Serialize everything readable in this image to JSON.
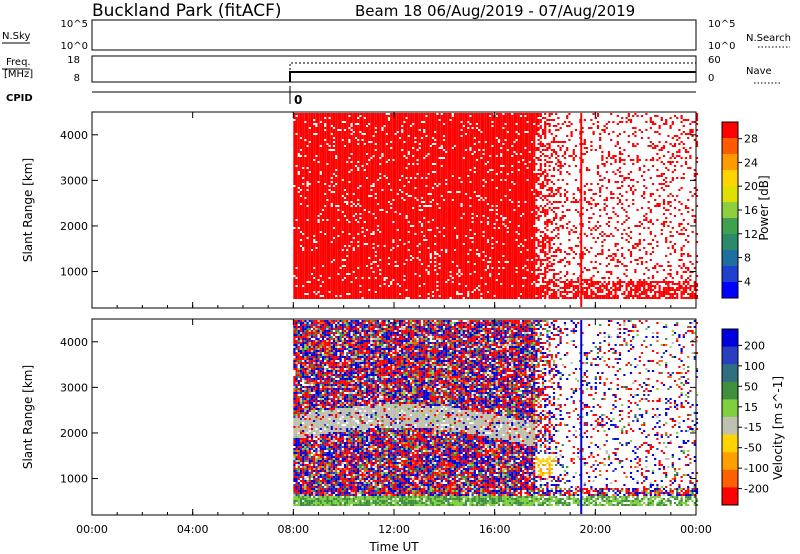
{
  "header": {
    "station": "Buckland Park (fitACF)",
    "beam_date": "Beam 18 06/Aug/2019 - 07/Aug/2019"
  },
  "panels": {
    "nsky": {
      "left_label": "N.Sky",
      "right_label": "N.Search",
      "left_ticks": [
        "10^5",
        "10^0"
      ],
      "right_ticks": [
        "10^5",
        "10^0"
      ]
    },
    "freq": {
      "left_label_1": "Freq.",
      "left_label_2": "[MHz]",
      "right_label": "Nave",
      "left_ticks": [
        "18",
        "8"
      ],
      "right_ticks": [
        "60",
        "0"
      ]
    },
    "cpid": {
      "label": "CPID",
      "value": "0"
    }
  },
  "x_axis": {
    "label": "Time UT",
    "ticks": [
      "00:00",
      "04:00",
      "08:00",
      "12:00",
      "16:00",
      "20:00",
      "00:00"
    ]
  },
  "power_colorbar": {
    "label": "Power [dB]",
    "ticks": [
      "28",
      "24",
      "20",
      "16",
      "12",
      "8",
      "4"
    ],
    "colors": [
      "#ff0000",
      "#ff5a00",
      "#ff9a00",
      "#ffd400",
      "#e0e000",
      "#8fcf3f",
      "#3fa04f",
      "#2a8a6a",
      "#1f6ea0",
      "#1f3fcf",
      "#0000ff"
    ]
  },
  "velocity_colorbar": {
    "label": "Velocity [m s^-1]",
    "ticks": [
      "200",
      "100",
      "50",
      "15",
      "-15",
      "-50",
      "-100",
      "-200"
    ],
    "colors": [
      "#0000dd",
      "#2a3fc0",
      "#2f6f7f",
      "#3f8f3f",
      "#7fcf3f",
      "#c0c0b0",
      "#ffd400",
      "#ffa000",
      "#ff6000",
      "#ff0000"
    ]
  },
  "chart_data": [
    {
      "type": "heatmap",
      "title": "Power",
      "xlabel": "",
      "ylabel": "Slant Range [km]",
      "x_range_hours": [
        0,
        24
      ],
      "ylim": [
        200,
        4500
      ],
      "y_ticks": [
        1000,
        2000,
        3000,
        4000
      ],
      "data_start_hour": 8.0,
      "data_end_hour": 24.0,
      "dense_end_hour": 17.6,
      "stripe_hour": 19.4,
      "dominant_value": "28"
    },
    {
      "type": "heatmap",
      "title": "Velocity",
      "xlabel": "Time UT",
      "ylabel": "Slant Range [km]",
      "x_range_hours": [
        0,
        24
      ],
      "ylim": [
        200,
        4500
      ],
      "y_ticks": [
        1000,
        2000,
        3000,
        4000
      ],
      "data_start_hour": 8.0,
      "data_end_hour": 24.0,
      "dense_end_hour": 17.6,
      "stripe_hour": 19.4
    }
  ]
}
